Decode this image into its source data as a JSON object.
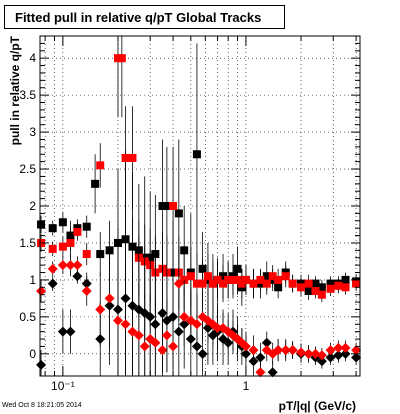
{
  "chart_data": {
    "type": "scatter",
    "title": "Fitted pull in relative q/pT  Global Tracks",
    "xlabel": "pT/|q| (GeV/c)",
    "ylabel": "pull in relative q/pT",
    "xscale": "log",
    "xlim": [
      0.075,
      4.2
    ],
    "ylim": [
      -0.3,
      4.3
    ],
    "grid": true,
    "legend": "none",
    "x_tick_labels": [
      {
        "value": 0.1,
        "label": "10⁻¹"
      },
      {
        "value": 1,
        "label": "1"
      }
    ],
    "y_ticks": [
      0,
      0.5,
      1,
      1.5,
      2,
      2.5,
      3,
      3.5,
      4
    ],
    "series": [
      {
        "marker": "square",
        "color": "#000000",
        "points": [
          {
            "x": 0.076,
            "y": 1.75,
            "e": 0.12
          },
          {
            "x": 0.088,
            "y": 1.7,
            "e": 0.1
          },
          {
            "x": 0.1,
            "y": 1.78,
            "e": 0.14
          },
          {
            "x": 0.11,
            "y": 1.6,
            "e": 0.2
          },
          {
            "x": 0.12,
            "y": 1.7,
            "e": 0.12
          },
          {
            "x": 0.135,
            "y": 1.72,
            "e": 0.15
          },
          {
            "x": 0.15,
            "y": 2.3,
            "e": 0.4
          },
          {
            "x": 0.16,
            "y": 1.35,
            "e": 0.3
          },
          {
            "x": 0.18,
            "y": 1.4,
            "e": 0.4
          },
          {
            "x": 0.2,
            "y": 1.5,
            "e": 1.0
          },
          {
            "x": 0.22,
            "y": 1.55,
            "e": 1.2
          },
          {
            "x": 0.24,
            "y": 1.45,
            "e": 1.0
          },
          {
            "x": 0.26,
            "y": 1.4,
            "e": 0.9
          },
          {
            "x": 0.28,
            "y": 1.3,
            "e": 1.1
          },
          {
            "x": 0.3,
            "y": 1.3,
            "e": 0.9
          },
          {
            "x": 0.32,
            "y": 1.35,
            "e": 0.8
          },
          {
            "x": 0.35,
            "y": 2.0,
            "e": 0.9
          },
          {
            "x": 0.37,
            "y": 2.0,
            "e": 0.8
          },
          {
            "x": 0.4,
            "y": 1.1,
            "e": 0.7
          },
          {
            "x": 0.43,
            "y": 1.9,
            "e": 1.0
          },
          {
            "x": 0.46,
            "y": 1.4,
            "e": 0.6
          },
          {
            "x": 0.5,
            "y": 1.1,
            "e": 0.8
          },
          {
            "x": 0.54,
            "y": 2.7,
            "e": 1.5
          },
          {
            "x": 0.58,
            "y": 1.15,
            "e": 0.5
          },
          {
            "x": 0.62,
            "y": 1.0,
            "e": 0.5
          },
          {
            "x": 0.66,
            "y": 0.95,
            "e": 0.4
          },
          {
            "x": 0.7,
            "y": 1.0,
            "e": 0.3
          },
          {
            "x": 0.75,
            "y": 1.05,
            "e": 0.3
          },
          {
            "x": 0.8,
            "y": 1.0,
            "e": 0.25
          },
          {
            "x": 0.85,
            "y": 1.05,
            "e": 0.3
          },
          {
            "x": 0.9,
            "y": 1.15,
            "e": 0.3
          },
          {
            "x": 0.95,
            "y": 0.9,
            "e": 0.25
          },
          {
            "x": 1.0,
            "y": 1.0,
            "e": 0.2
          },
          {
            "x": 1.1,
            "y": 0.95,
            "e": 0.2
          },
          {
            "x": 1.2,
            "y": 0.95,
            "e": 0.2
          },
          {
            "x": 1.3,
            "y": 1.05,
            "e": 0.2
          },
          {
            "x": 1.4,
            "y": 1.0,
            "e": 0.15
          },
          {
            "x": 1.5,
            "y": 0.9,
            "e": 0.15
          },
          {
            "x": 1.65,
            "y": 1.1,
            "e": 0.15
          },
          {
            "x": 1.8,
            "y": 0.95,
            "e": 0.12
          },
          {
            "x": 2.0,
            "y": 0.95,
            "e": 0.12
          },
          {
            "x": 2.2,
            "y": 0.85,
            "e": 0.12
          },
          {
            "x": 2.4,
            "y": 0.95,
            "e": 0.1
          },
          {
            "x": 2.6,
            "y": 0.9,
            "e": 0.1
          },
          {
            "x": 2.9,
            "y": 0.95,
            "e": 0.1
          },
          {
            "x": 3.2,
            "y": 0.95,
            "e": 0.1
          },
          {
            "x": 3.5,
            "y": 1.0,
            "e": 0.1
          },
          {
            "x": 4.0,
            "y": 0.98,
            "e": 0.1
          }
        ]
      },
      {
        "marker": "square",
        "color": "#ff0000",
        "points": [
          {
            "x": 0.076,
            "y": 1.5,
            "e": 0.12
          },
          {
            "x": 0.088,
            "y": 1.42,
            "e": 0.1
          },
          {
            "x": 0.1,
            "y": 1.45,
            "e": 0.14
          },
          {
            "x": 0.11,
            "y": 1.5,
            "e": 0.2
          },
          {
            "x": 0.12,
            "y": 1.65,
            "e": 0.12
          },
          {
            "x": 0.135,
            "y": 1.35,
            "e": 0.15
          },
          {
            "x": 0.16,
            "y": 2.55,
            "e": 0.3
          },
          {
            "x": 0.2,
            "y": 4.0,
            "e": 0.8
          },
          {
            "x": 0.21,
            "y": 4.0,
            "e": 0.8
          },
          {
            "x": 0.22,
            "y": 2.65,
            "e": 0.7
          },
          {
            "x": 0.24,
            "y": 2.65,
            "e": 0.7
          },
          {
            "x": 0.26,
            "y": 1.3,
            "e": 0.5
          },
          {
            "x": 0.28,
            "y": 1.25,
            "e": 0.5
          },
          {
            "x": 0.3,
            "y": 1.2,
            "e": 0.5
          },
          {
            "x": 0.32,
            "y": 1.1,
            "e": 0.5
          },
          {
            "x": 0.35,
            "y": 1.15,
            "e": 0.5
          },
          {
            "x": 0.37,
            "y": 1.1,
            "e": 0.5
          },
          {
            "x": 0.4,
            "y": 2.0,
            "e": 0.8
          },
          {
            "x": 0.43,
            "y": 1.1,
            "e": 0.5
          },
          {
            "x": 0.46,
            "y": 1.0,
            "e": 0.4
          },
          {
            "x": 0.5,
            "y": 1.05,
            "e": 0.4
          },
          {
            "x": 0.54,
            "y": 0.95,
            "e": 0.4
          },
          {
            "x": 0.58,
            "y": 0.95,
            "e": 0.35
          },
          {
            "x": 0.62,
            "y": 1.05,
            "e": 0.3
          },
          {
            "x": 0.66,
            "y": 0.95,
            "e": 0.3
          },
          {
            "x": 0.7,
            "y": 1.0,
            "e": 0.25
          },
          {
            "x": 0.75,
            "y": 0.95,
            "e": 0.25
          },
          {
            "x": 0.8,
            "y": 1.0,
            "e": 0.25
          },
          {
            "x": 0.85,
            "y": 1.0,
            "e": 0.2
          },
          {
            "x": 0.9,
            "y": 1.0,
            "e": 0.2
          },
          {
            "x": 0.95,
            "y": 0.95,
            "e": 0.2
          },
          {
            "x": 1.0,
            "y": 1.0,
            "e": 0.2
          },
          {
            "x": 1.1,
            "y": 0.95,
            "e": 0.2
          },
          {
            "x": 1.2,
            "y": 1.0,
            "e": 0.15
          },
          {
            "x": 1.3,
            "y": 0.95,
            "e": 0.15
          },
          {
            "x": 1.4,
            "y": 1.05,
            "e": 0.15
          },
          {
            "x": 1.5,
            "y": 1.0,
            "e": 0.15
          },
          {
            "x": 1.65,
            "y": 1.05,
            "e": 0.15
          },
          {
            "x": 1.8,
            "y": 0.95,
            "e": 0.12
          },
          {
            "x": 2.0,
            "y": 0.9,
            "e": 0.12
          },
          {
            "x": 2.2,
            "y": 0.95,
            "e": 0.12
          },
          {
            "x": 2.4,
            "y": 0.85,
            "e": 0.1
          },
          {
            "x": 2.6,
            "y": 0.8,
            "e": 0.1
          },
          {
            "x": 2.9,
            "y": 0.88,
            "e": 0.1
          },
          {
            "x": 3.2,
            "y": 0.92,
            "e": 0.1
          },
          {
            "x": 3.5,
            "y": 0.9,
            "e": 0.1
          },
          {
            "x": 4.0,
            "y": 0.95,
            "e": 0.1
          }
        ]
      },
      {
        "marker": "diamond",
        "color": "#000000",
        "points": [
          {
            "x": 0.076,
            "y": -0.15,
            "e": 0.2
          },
          {
            "x": 0.088,
            "y": 0.95,
            "e": 0.1
          },
          {
            "x": 0.1,
            "y": 0.3,
            "e": 0.3
          },
          {
            "x": 0.11,
            "y": 0.3,
            "e": 0.3
          },
          {
            "x": 0.12,
            "y": 1.05,
            "e": 0.1
          },
          {
            "x": 0.135,
            "y": 0.95,
            "e": 0.15
          },
          {
            "x": 0.16,
            "y": 0.2,
            "e": 0.5
          },
          {
            "x": 0.18,
            "y": 0.65,
            "e": 0.8
          },
          {
            "x": 0.2,
            "y": 0.6,
            "e": 1.1
          },
          {
            "x": 0.22,
            "y": 0.75,
            "e": 1.3
          },
          {
            "x": 0.24,
            "y": 0.65,
            "e": 1.2
          },
          {
            "x": 0.26,
            "y": 0.6,
            "e": 1.0
          },
          {
            "x": 0.28,
            "y": 0.55,
            "e": 0.9
          },
          {
            "x": 0.3,
            "y": 0.5,
            "e": 0.9
          },
          {
            "x": 0.32,
            "y": 0.4,
            "e": 0.8
          },
          {
            "x": 0.35,
            "y": 0.55,
            "e": 0.8
          },
          {
            "x": 0.37,
            "y": 0.45,
            "e": 0.7
          },
          {
            "x": 0.4,
            "y": 0.5,
            "e": 0.7
          },
          {
            "x": 0.43,
            "y": 0.3,
            "e": 0.7
          },
          {
            "x": 0.46,
            "y": 0.4,
            "e": 0.6
          },
          {
            "x": 0.5,
            "y": 0.2,
            "e": 0.7
          },
          {
            "x": 0.54,
            "y": 0.1,
            "e": 0.7
          },
          {
            "x": 0.58,
            "y": 0.0,
            "e": 0.6
          },
          {
            "x": 0.62,
            "y": 0.35,
            "e": 0.5
          },
          {
            "x": 0.66,
            "y": 0.25,
            "e": 0.4
          },
          {
            "x": 0.7,
            "y": 0.3,
            "e": 0.4
          },
          {
            "x": 0.75,
            "y": 0.2,
            "e": 0.35
          },
          {
            "x": 0.8,
            "y": 0.15,
            "e": 0.3
          },
          {
            "x": 0.85,
            "y": 0.3,
            "e": 0.3
          },
          {
            "x": 0.9,
            "y": 0.2,
            "e": 0.3
          },
          {
            "x": 0.95,
            "y": 0.1,
            "e": 0.25
          },
          {
            "x": 1.0,
            "y": 0.0,
            "e": 0.25
          },
          {
            "x": 1.1,
            "y": -0.1,
            "e": 0.2
          },
          {
            "x": 1.2,
            "y": -0.05,
            "e": 0.2
          },
          {
            "x": 1.3,
            "y": 0.15,
            "e": 0.15
          },
          {
            "x": 1.4,
            "y": -0.25,
            "e": 0.15
          },
          {
            "x": 1.5,
            "y": 0.05,
            "e": 0.15
          },
          {
            "x": 1.65,
            "y": 0.05,
            "e": 0.15
          },
          {
            "x": 1.8,
            "y": 0.05,
            "e": 0.12
          },
          {
            "x": 2.0,
            "y": 0.0,
            "e": 0.12
          },
          {
            "x": 2.2,
            "y": 0.0,
            "e": 0.12
          },
          {
            "x": 2.4,
            "y": -0.05,
            "e": 0.1
          },
          {
            "x": 2.6,
            "y": -0.1,
            "e": 0.1
          },
          {
            "x": 2.9,
            "y": -0.05,
            "e": 0.1
          },
          {
            "x": 3.2,
            "y": -0.02,
            "e": 0.1
          },
          {
            "x": 3.5,
            "y": 0.0,
            "e": 0.1
          },
          {
            "x": 4.0,
            "y": -0.05,
            "e": 0.1
          }
        ]
      },
      {
        "marker": "diamond",
        "color": "#ff0000",
        "points": [
          {
            "x": 0.076,
            "y": 0.85,
            "e": 0.15
          },
          {
            "x": 0.088,
            "y": 1.15,
            "e": 0.1
          },
          {
            "x": 0.1,
            "y": 1.2,
            "e": 0.12
          },
          {
            "x": 0.11,
            "y": 1.2,
            "e": 0.15
          },
          {
            "x": 0.12,
            "y": 1.2,
            "e": 0.12
          },
          {
            "x": 0.135,
            "y": 0.85,
            "e": 0.2
          },
          {
            "x": 0.16,
            "y": 0.6,
            "e": 0.5
          },
          {
            "x": 0.18,
            "y": 0.75,
            "e": 0.7
          },
          {
            "x": 0.2,
            "y": 0.45,
            "e": 0.8
          },
          {
            "x": 0.22,
            "y": 0.4,
            "e": 0.8
          },
          {
            "x": 0.24,
            "y": 0.3,
            "e": 0.8
          },
          {
            "x": 0.26,
            "y": 0.25,
            "e": 0.7
          },
          {
            "x": 0.28,
            "y": 0.1,
            "e": 0.7
          },
          {
            "x": 0.3,
            "y": 0.2,
            "e": 0.6
          },
          {
            "x": 0.32,
            "y": 0.15,
            "e": 0.6
          },
          {
            "x": 0.35,
            "y": 0.05,
            "e": 0.6
          },
          {
            "x": 0.37,
            "y": 0.25,
            "e": 0.5
          },
          {
            "x": 0.4,
            "y": 0.1,
            "e": 0.5
          },
          {
            "x": 0.43,
            "y": 0.95,
            "e": 0.5
          },
          {
            "x": 0.46,
            "y": 0.5,
            "e": 0.4
          },
          {
            "x": 0.5,
            "y": 0.45,
            "e": 0.4
          },
          {
            "x": 0.54,
            "y": 0.4,
            "e": 0.4
          },
          {
            "x": 0.58,
            "y": 0.5,
            "e": 0.35
          },
          {
            "x": 0.62,
            "y": 0.45,
            "e": 0.3
          },
          {
            "x": 0.66,
            "y": 0.4,
            "e": 0.3
          },
          {
            "x": 0.7,
            "y": 0.35,
            "e": 0.3
          },
          {
            "x": 0.75,
            "y": 0.35,
            "e": 0.25
          },
          {
            "x": 0.8,
            "y": 0.3,
            "e": 0.25
          },
          {
            "x": 0.85,
            "y": 0.25,
            "e": 0.2
          },
          {
            "x": 0.9,
            "y": 0.2,
            "e": 0.2
          },
          {
            "x": 0.95,
            "y": 0.15,
            "e": 0.2
          },
          {
            "x": 1.0,
            "y": 0.1,
            "e": 0.2
          },
          {
            "x": 1.1,
            "y": 0.05,
            "e": 0.2
          },
          {
            "x": 1.2,
            "y": -0.25,
            "e": 0.15
          },
          {
            "x": 1.3,
            "y": 0.05,
            "e": 0.15
          },
          {
            "x": 1.4,
            "y": 0.0,
            "e": 0.15
          },
          {
            "x": 1.5,
            "y": 0.05,
            "e": 0.15
          },
          {
            "x": 1.65,
            "y": 0.05,
            "e": 0.12
          },
          {
            "x": 1.8,
            "y": 0.05,
            "e": 0.12
          },
          {
            "x": 2.0,
            "y": 0.02,
            "e": 0.12
          },
          {
            "x": 2.2,
            "y": 0.0,
            "e": 0.1
          },
          {
            "x": 2.4,
            "y": 0.0,
            "e": 0.1
          },
          {
            "x": 2.6,
            "y": -0.02,
            "e": 0.1
          },
          {
            "x": 2.9,
            "y": 0.05,
            "e": 0.1
          },
          {
            "x": 3.2,
            "y": 0.08,
            "e": 0.1
          },
          {
            "x": 3.5,
            "y": 0.08,
            "e": 0.1
          },
          {
            "x": 4.0,
            "y": 0.05,
            "e": 0.1
          }
        ]
      }
    ]
  },
  "footer": "Wed Oct  8 18:21:05 2014"
}
